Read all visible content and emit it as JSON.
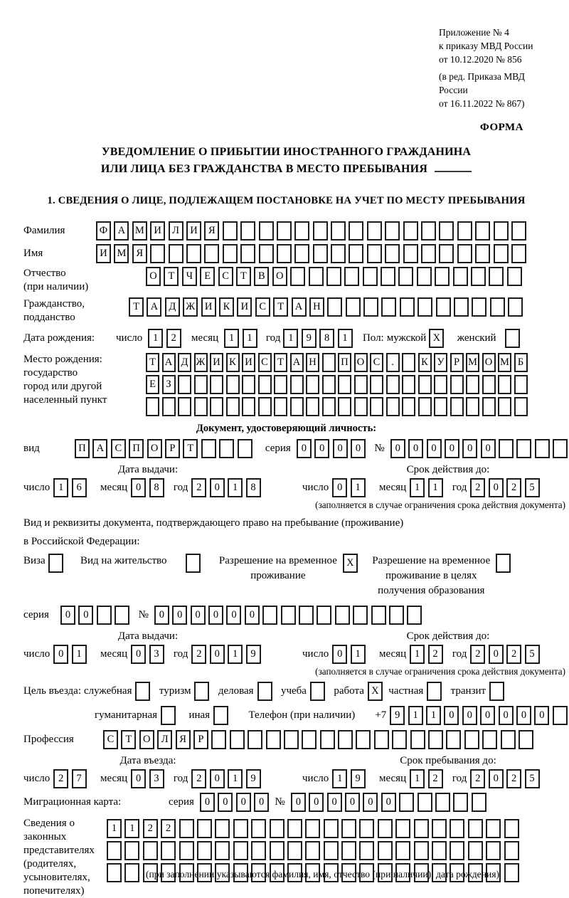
{
  "header": {
    "appendix_lines": [
      "Приложение № 4",
      "к приказу МВД России",
      "от 10.12.2020 № 856"
    ],
    "edition_lines": [
      "(в ред. Приказа МВД России",
      "от 16.11.2022 № 867)"
    ],
    "form_label": "ФОРМА"
  },
  "title": {
    "line1": "УВЕДОМЛЕНИЕ О ПРИБЫТИИ ИНОСТРАННОГО ГРАЖДАНИНА",
    "line2": "ИЛИ ЛИЦА БЕЗ ГРАЖДАНСТВА В МЕСТО ПРЕБЫВАНИЯ"
  },
  "section1_heading": "1. СВЕДЕНИЯ О ЛИЦЕ, ПОДЛЕЖАЩЕМ ПОСТАНОВКЕ НА УЧЕТ ПО МЕСТУ ПРЕБЫВАНИЯ",
  "date_labels": {
    "day": "число",
    "month": "месяц",
    "year": "год"
  },
  "notes": {
    "validity": "(заполняется в случае ограничения срока действия документа)"
  },
  "fields": {
    "surname": {
      "label": "Фамилия",
      "cells": {
        "text": "ФАМИЛИЯ",
        "count": 24
      }
    },
    "name": {
      "label": "Имя",
      "cells": {
        "text": "ИМЯ",
        "count": 24
      }
    },
    "patronymic": {
      "label1": "Отчество",
      "label2": "(при наличии)",
      "cells": {
        "text": "ОТЧЕСТВО",
        "count": 21
      }
    },
    "citizenship": {
      "label1": "Гражданство,",
      "label2": "подданство",
      "cells": {
        "text": "ТАДЖИКИСТАН",
        "count": 22
      }
    },
    "birth_date": {
      "label": "Дата рождения:",
      "day": {
        "text": "12",
        "count": 2
      },
      "month": {
        "text": "11",
        "count": 2
      },
      "year": {
        "text": "1981",
        "count": 4
      }
    },
    "sex": {
      "label": "Пол:",
      "male_label": "мужской",
      "male_box": {
        "text": "X",
        "count": 1
      },
      "female_label": "женский",
      "female_box": {
        "text": "",
        "count": 1
      }
    },
    "birth_place": {
      "label1": "Место рождения:",
      "label2": "государство",
      "label3": "город или другой",
      "label4": "населенный пункт",
      "rows": [
        {
          "text": "ТАДЖИКИСТАН ПОС. КУРМОМБ",
          "count": 24
        },
        {
          "text": "ЕЗ",
          "count": 24
        },
        {
          "text": "",
          "count": 24
        }
      ]
    }
  },
  "id_doc": {
    "heading": "Документ, удостоверяющий личность:",
    "kind_label": "вид",
    "kind": {
      "text": "ПАСПОРТ",
      "count": 10
    },
    "series_label": "серия",
    "series": {
      "text": "0000",
      "count": 4
    },
    "number_label": "№",
    "number": {
      "text": "000000",
      "count": 11
    },
    "issue": {
      "heading": "Дата выдачи:",
      "day": {
        "text": "16",
        "count": 2
      },
      "month": {
        "text": "08",
        "count": 2
      },
      "year": {
        "text": "2018",
        "count": 4
      }
    },
    "expiry": {
      "heading": "Срок действия до:",
      "day": {
        "text": "01",
        "count": 2
      },
      "month": {
        "text": "11",
        "count": 2
      },
      "year": {
        "text": "2025",
        "count": 4
      }
    }
  },
  "residence_doc": {
    "intro1": "Вид и реквизиты документа, подтверждающего право на пребывание (проживание)",
    "intro2": "в Российской Федерации:",
    "options": [
      {
        "label_lines": [
          "Виза"
        ],
        "box": {
          "text": "",
          "count": 1
        }
      },
      {
        "label_lines": [
          "Вид на жительство"
        ],
        "box": {
          "text": "",
          "count": 1
        }
      },
      {
        "label_lines": [
          "Разрешение на временное",
          "проживание"
        ],
        "box": {
          "text": "X",
          "count": 1
        }
      },
      {
        "label_lines": [
          "Разрешение на временное",
          "проживание в целях",
          "получения образования"
        ],
        "box": {
          "text": "",
          "count": 1
        }
      }
    ],
    "series_label": "серия",
    "series": {
      "text": "00",
      "count": 4
    },
    "number_label": "№",
    "number": {
      "text": "000000",
      "count": 15
    },
    "issue": {
      "heading": "Дата выдачи:",
      "day": {
        "text": "01",
        "count": 2
      },
      "month": {
        "text": "03",
        "count": 2
      },
      "year": {
        "text": "2019",
        "count": 4
      }
    },
    "expiry": {
      "heading": "Срок действия до:",
      "day": {
        "text": "01",
        "count": 2
      },
      "month": {
        "text": "12",
        "count": 2
      },
      "year": {
        "text": "2025",
        "count": 4
      }
    }
  },
  "visit": {
    "label": "Цель въезда:",
    "options": [
      {
        "label": "служебная",
        "box": {
          "text": "",
          "count": 1
        }
      },
      {
        "label": "туризм",
        "box": {
          "text": "",
          "count": 1
        }
      },
      {
        "label": "деловая",
        "box": {
          "text": "",
          "count": 1
        }
      },
      {
        "label": "учеба",
        "box": {
          "text": "",
          "count": 1
        }
      },
      {
        "label": "работа",
        "box": {
          "text": "X",
          "count": 1
        }
      },
      {
        "label": "частная",
        "box": {
          "text": "",
          "count": 1
        }
      },
      {
        "label": "транзит",
        "box": {
          "text": "",
          "count": 1
        }
      },
      {
        "label": "гуманитарная",
        "box": {
          "text": "",
          "count": 1
        }
      },
      {
        "label": "иная",
        "box": {
          "text": "",
          "count": 1
        }
      }
    ],
    "phone_label": "Телефон (при наличии)",
    "phone_prefix": "+7",
    "phone": {
      "text": "911000000",
      "count": 10
    }
  },
  "profession": {
    "label": "Профессия",
    "cells": {
      "text": "СТОЛЯР",
      "count": 24
    }
  },
  "entry": {
    "issue": {
      "heading": "Дата въезда:",
      "day": {
        "text": "27",
        "count": 2
      },
      "month": {
        "text": "03",
        "count": 2
      },
      "year": {
        "text": "2019",
        "count": 4
      }
    },
    "stay": {
      "heading": "Срок пребывания до:",
      "day": {
        "text": "19",
        "count": 2
      },
      "month": {
        "text": "12",
        "count": 2
      },
      "year": {
        "text": "2025",
        "count": 4
      }
    }
  },
  "migration_card": {
    "label": "Миграционная карта:",
    "series_label": "серия",
    "series": {
      "text": "0000",
      "count": 4
    },
    "number_label": "№",
    "number": {
      "text": "000000",
      "count": 11
    }
  },
  "representatives": {
    "label1": "Сведения о",
    "label2": "законных",
    "label3": "представителях",
    "label4": "(родителях,",
    "label5": "усыновителях,",
    "label6": "попечителях)",
    "rows": [
      {
        "text": "1122",
        "count": 23
      },
      {
        "text": "",
        "count": 23
      },
      {
        "text": "",
        "count": 23
      }
    ],
    "caption": "(при заполнении указываются фамилия, имя, отчество (при наличии), дата рождения)"
  }
}
